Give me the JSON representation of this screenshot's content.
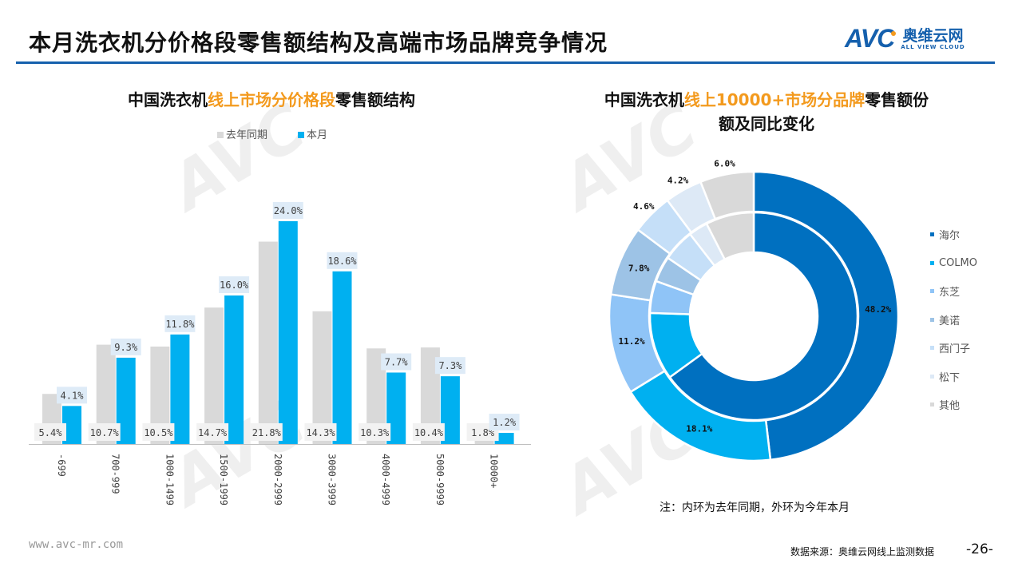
{
  "header": {
    "title": "本月洗衣机分价格段零售额结构及高端市场品牌竞争情况",
    "logo_text": "AVC",
    "logo_cn": "奥维云网",
    "logo_en": "ALL VIEW CLOUD"
  },
  "chart_data": [
    {
      "type": "bar",
      "title_parts": [
        "中国洗衣机",
        "线上市场分价格段",
        "零售额结构"
      ],
      "categories": [
        "-699",
        "700-999",
        "1000-1499",
        "1500-1999",
        "2000-2999",
        "3000-3999",
        "4000-4999",
        "5000-9999",
        "10000+"
      ],
      "series": [
        {
          "name": "去年同期",
          "color": "#d9d9d9",
          "values": [
            5.4,
            10.7,
            10.5,
            14.7,
            21.8,
            14.3,
            10.3,
            10.4,
            1.8
          ],
          "labels": [
            "5.4%",
            "10.7%",
            "10.5%",
            "14.7%",
            "21.8%",
            "14.3%",
            "10.3%",
            "10.4%",
            "1.8%"
          ]
        },
        {
          "name": "本月",
          "color": "#00b0f0",
          "values": [
            4.1,
            9.3,
            11.8,
            16.0,
            24.0,
            18.6,
            7.7,
            7.3,
            1.2
          ],
          "labels": [
            "4.1%",
            "9.3%",
            "11.8%",
            "16.0%",
            "24.0%",
            "18.6%",
            "7.7%",
            "7.3%",
            "1.2%"
          ]
        }
      ],
      "ylim": [
        0,
        24
      ],
      "legend": "top"
    },
    {
      "type": "pie",
      "title_parts": [
        "中国洗衣机",
        "线上10000+市场分品牌",
        "零售额份",
        "额及同比变化"
      ],
      "categories": [
        "海尔",
        "COLMO",
        "东芝",
        "美诺",
        "西门子",
        "松下",
        "其他"
      ],
      "colors": [
        "#0070c0",
        "#00b0f0",
        "#8fc4f7",
        "#9dc3e6",
        "#c5dff8",
        "#dde9f6",
        "#d9d9d9"
      ],
      "series": [
        {
          "name": "今年本月(外环)",
          "values": [
            48.2,
            18.1,
            11.2,
            7.8,
            4.6,
            4.2,
            6.0
          ],
          "labels": [
            "48.2%",
            "18.1%",
            "11.2%",
            "7.8%",
            "4.6%",
            "4.2%",
            "6.0%"
          ]
        },
        {
          "name": "去年同期(内环)",
          "values": [
            65,
            10.5,
            5,
            4,
            5,
            3,
            7.5
          ]
        }
      ],
      "legend": "right"
    }
  ],
  "note": "注：内环为去年同期，外环为今年本月",
  "footer": {
    "url": "www.avc-mr.com",
    "source": "数据来源：奥维云网线上监测数据",
    "page": "-26-"
  }
}
